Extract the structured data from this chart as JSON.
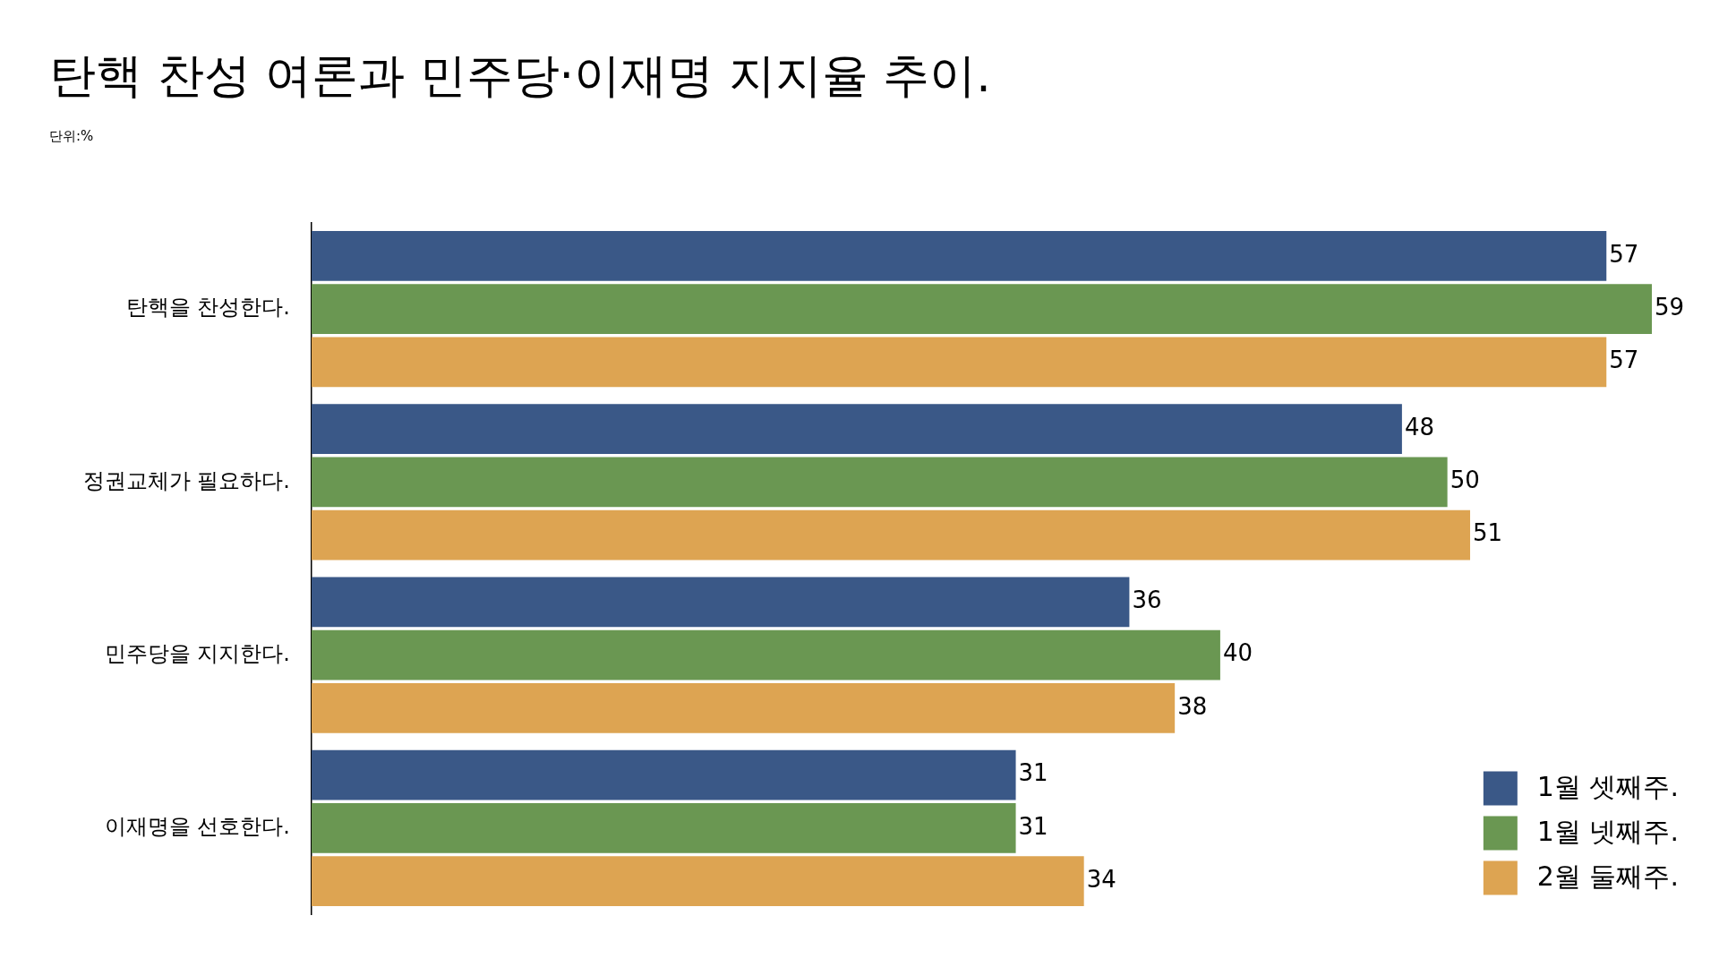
{
  "chart_data": {
    "type": "bar",
    "orientation": "horizontal",
    "title": "탄핵 찬성 여론과 민주당·이재명 지지율 추이.",
    "subtitle": "단위:%",
    "categories": [
      "탄핵을 찬성한다.",
      "정권교체가 필요하다.",
      "민주당을 지지한다.",
      "이재명을 선호한다."
    ],
    "series": [
      {
        "name": "1월 셋째주.",
        "color": "#3a5887",
        "values": [
          57,
          48,
          36,
          31
        ]
      },
      {
        "name": "1월 넷째주.",
        "color": "#6a9752",
        "values": [
          59,
          50,
          40,
          31
        ]
      },
      {
        "name": "2월 둘째주.",
        "color": "#dda452",
        "values": [
          57,
          51,
          38,
          34
        ]
      }
    ],
    "data_labels": true,
    "legend": "bottom right",
    "grid": false
  }
}
